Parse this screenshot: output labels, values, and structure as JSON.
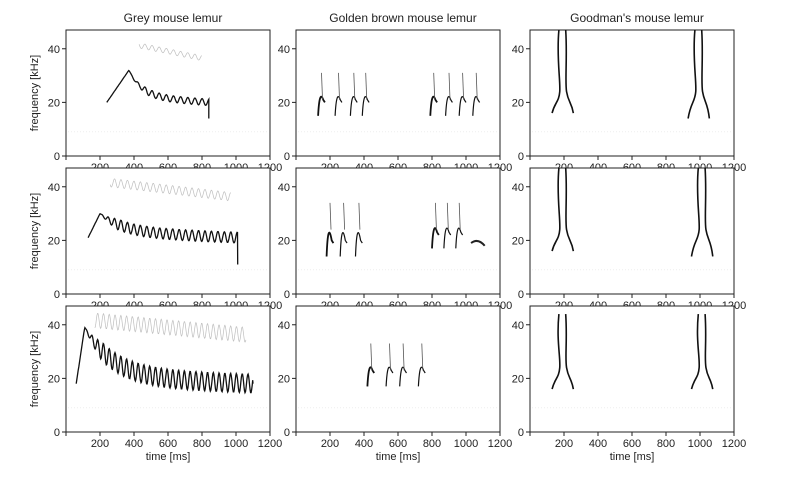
{
  "figure": {
    "column_titles": [
      "Grey mouse lemur",
      "Golden brown mouse lemur",
      "Goodman's mouse lemur"
    ],
    "xlabel": "time [ms]",
    "ylabel": "frequency [kHz]"
  },
  "chart_data": {
    "type": "heatmap",
    "description_kind": "spectrogram grid",
    "rows": 3,
    "cols": 3,
    "xlim": [
      0,
      1200
    ],
    "ylim": [
      0,
      47
    ],
    "xticks": [
      200,
      400,
      600,
      800,
      1000,
      1200
    ],
    "xtick_labels": [
      "200",
      "400",
      "600",
      "800",
      "1000",
      "1200"
    ],
    "yticks": [
      0,
      20,
      40
    ],
    "ytick_labels": [
      "0",
      "20",
      "40"
    ],
    "species": [
      "Grey mouse lemur",
      "Golden brown mouse lemur",
      "Goodman's mouse lemur"
    ],
    "panels": [
      {
        "species": "Grey mouse lemur",
        "row": 1,
        "calls": [
          {
            "type": "trill",
            "t_start": 240,
            "t_end": 840,
            "f_peak": 32,
            "peak_t": 370,
            "f_base": 22,
            "f_end": 14,
            "osc_period": 42,
            "osc_amp": 1.2,
            "harmonics": 1
          }
        ]
      },
      {
        "species": "Grey mouse lemur",
        "row": 2,
        "calls": [
          {
            "type": "trill",
            "t_start": 130,
            "t_end": 1010,
            "f_peak": 30,
            "peak_t": 200,
            "f_base": 23,
            "f_end": 11,
            "osc_period": 38,
            "osc_amp": 2.0,
            "harmonics": 1
          }
        ]
      },
      {
        "species": "Grey mouse lemur",
        "row": 3,
        "calls": [
          {
            "type": "trill",
            "t_start": 60,
            "t_end": 1100,
            "f_peak": 39,
            "peak_t": 110,
            "f_base": 20,
            "f_end": 18,
            "osc_period": 34,
            "osc_amp": 3.5,
            "harmonics": 1
          }
        ]
      },
      {
        "species": "Golden brown mouse lemur",
        "row": 1,
        "calls": [
          {
            "type": "chirp-seq",
            "onsets": [
              130,
              230,
              320,
              390
            ],
            "f_low": 15,
            "f_high": 31
          },
          {
            "type": "chirp-seq",
            "onsets": [
              790,
              880,
              960,
              1040
            ],
            "f_low": 15,
            "f_high": 31
          }
        ]
      },
      {
        "species": "Golden brown mouse lemur",
        "row": 2,
        "calls": [
          {
            "type": "chirp-seq",
            "onsets": [
              180,
              260,
              350
            ],
            "f_low": 14,
            "f_high": 34
          },
          {
            "type": "chirp-seq",
            "onsets": [
              800,
              870,
              940
            ],
            "f_low": 17,
            "f_high": 34
          },
          {
            "type": "tone",
            "t_start": 1030,
            "t_end": 1110,
            "f": 19
          }
        ]
      },
      {
        "species": "Golden brown mouse lemur",
        "row": 3,
        "calls": [
          {
            "type": "chirp-seq",
            "onsets": [
              420,
              530,
              610,
              720
            ],
            "f_low": 17,
            "f_high": 33
          }
        ]
      },
      {
        "species": "Goodman's mouse lemur",
        "row": 1,
        "calls": [
          {
            "type": "double-arc",
            "center": 200,
            "f_low": 16,
            "f_high": 47
          },
          {
            "type": "double-arc",
            "center": 1000,
            "f_low": 14,
            "f_high": 47
          }
        ]
      },
      {
        "species": "Goodman's mouse lemur",
        "row": 2,
        "calls": [
          {
            "type": "double-arc",
            "center": 200,
            "f_low": 16,
            "f_high": 47
          },
          {
            "type": "double-arc",
            "center": 1020,
            "f_low": 14,
            "f_high": 47
          }
        ]
      },
      {
        "species": "Goodman's mouse lemur",
        "row": 3,
        "calls": [
          {
            "type": "double-arc",
            "center": 200,
            "f_low": 16,
            "f_high": 44
          },
          {
            "type": "double-arc",
            "center": 1020,
            "f_low": 16,
            "f_high": 44
          }
        ]
      }
    ]
  }
}
